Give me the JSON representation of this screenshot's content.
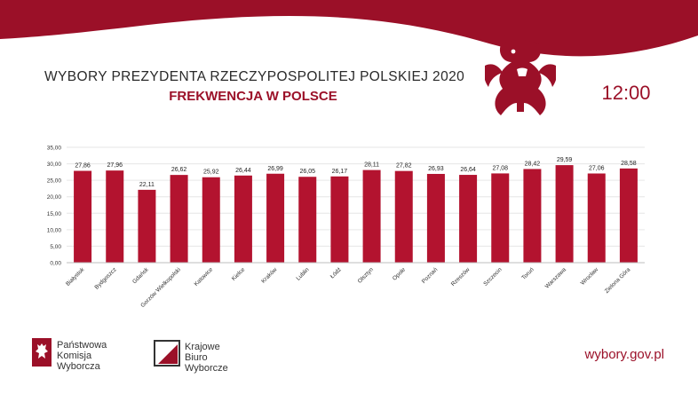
{
  "header": {
    "title": "WYBORY PREZYDENTA RZECZYPOSPOLITEJ POLSKIEJ 2020",
    "subtitle": "FREKWENCJA W POLSCE",
    "time": "12:00"
  },
  "colors": {
    "brand_red": "#9b1028",
    "bar": "#b3132f",
    "grid": "#e6e6e6",
    "text": "#333333"
  },
  "chart_data": {
    "type": "bar",
    "categories": [
      "Białystok",
      "Bydgoszcz",
      "Gdańsk",
      "Gorzów Wielkopolski",
      "Katowice",
      "Kielce",
      "Kraków",
      "Lublin",
      "Łódź",
      "Olsztyn",
      "Opole",
      "Poznań",
      "Rzeszów",
      "Szczecin",
      "Toruń",
      "Warszawa",
      "Wrocław",
      "Zielona Góra"
    ],
    "values": [
      27.86,
      27.96,
      22.11,
      26.62,
      25.92,
      26.44,
      26.99,
      26.05,
      26.17,
      28.11,
      27.82,
      26.93,
      26.64,
      27.08,
      28.42,
      29.59,
      27.06,
      28.58
    ],
    "value_labels": [
      "27,86",
      "27,96",
      "22,11",
      "26,62",
      "25,92",
      "26,44",
      "26,99",
      "26,05",
      "26,17",
      "28,11",
      "27,82",
      "26,93",
      "26,64",
      "27,08",
      "28,42",
      "29,59",
      "27,06",
      "28,58"
    ],
    "yticks": [
      "0,00",
      "5,00",
      "10,00",
      "15,00",
      "20,00",
      "25,00",
      "30,00",
      "35,00"
    ],
    "ylim": [
      0,
      35
    ],
    "grid": true,
    "legend": "none"
  },
  "logos": {
    "pkw": "Państwowa\nKomisja\nWyborcza",
    "kbw": "Krajowe\nBiuro\nWyborcze"
  },
  "footer": {
    "website": "wybory.gov.pl"
  }
}
